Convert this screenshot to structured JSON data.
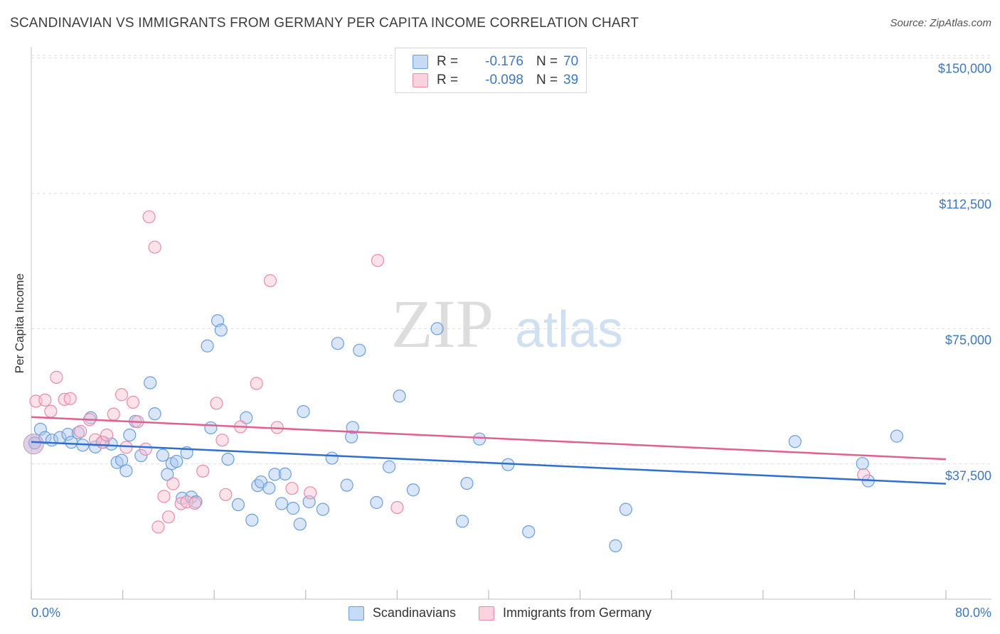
{
  "title": "SCANDINAVIAN VS IMMIGRANTS FROM GERMANY PER CAPITA INCOME CORRELATION CHART",
  "source": "Source: ZipAtlas.com",
  "watermark": {
    "zip": "ZIP",
    "atlas": "atlas"
  },
  "stats": [
    {
      "r_label": "R =",
      "r_value": "-0.176",
      "n_label": "N =",
      "n_value": "70",
      "color": "#a8c8f0",
      "border": "#6a9fe0"
    },
    {
      "r_label": "R =",
      "r_value": "-0.098",
      "n_label": "N =",
      "n_value": "39",
      "color": "#f8c0d0",
      "border": "#ec8aa8"
    }
  ],
  "legend": [
    {
      "label": "Scandinavians",
      "color": "#a8c8f0",
      "border": "#6a9fe0"
    },
    {
      "label": "Immigrants from Germany",
      "color": "#f8c0d0",
      "border": "#ec8aa8"
    }
  ],
  "colors": {
    "blue_line": "#2e6fcf",
    "pink_line": "#e0618f",
    "blue_point": "#6a9fe0",
    "pink_point": "#ec8aa8",
    "axis_text": "#3b78c8"
  },
  "chart_data": {
    "type": "scatter",
    "title": "SCANDINAVIAN VS IMMIGRANTS FROM GERMANY PER CAPITA INCOME CORRELATION CHART",
    "xlabel": "",
    "ylabel": "Per Capita Income",
    "x_tick_labels": [
      "0.0%",
      "80.0%"
    ],
    "y_tick_labels": [
      "$150,000",
      "$112,500",
      "$75,000",
      "$37,500"
    ],
    "y_ticks": [
      150000,
      112500,
      75000,
      37500
    ],
    "xlim": [
      0,
      80
    ],
    "ylim": [
      0,
      153500
    ],
    "grid": "horizontal dashed",
    "legend_position": "bottom",
    "series": [
      {
        "name": "Scandinavians",
        "trend": {
          "x": [
            0,
            80
          ],
          "y": [
            43600,
            32000
          ]
        },
        "points": [
          [
            0.3,
            43300
          ],
          [
            0.8,
            47100
          ],
          [
            1.2,
            44800
          ],
          [
            1.8,
            44100
          ],
          [
            2.5,
            44800
          ],
          [
            3.2,
            45700
          ],
          [
            3.5,
            43500
          ],
          [
            4.1,
            46100
          ],
          [
            4.5,
            42700
          ],
          [
            5.2,
            50300
          ],
          [
            5.6,
            42200
          ],
          [
            6.3,
            43500
          ],
          [
            7.0,
            43000
          ],
          [
            7.5,
            37900
          ],
          [
            7.9,
            38500
          ],
          [
            8.3,
            35600
          ],
          [
            8.6,
            45500
          ],
          [
            9.1,
            49300
          ],
          [
            9.6,
            39800
          ],
          [
            10.4,
            60000
          ],
          [
            10.8,
            51400
          ],
          [
            11.5,
            39900
          ],
          [
            11.9,
            34600
          ],
          [
            12.3,
            37600
          ],
          [
            12.7,
            38200
          ],
          [
            13.2,
            28000
          ],
          [
            13.6,
            40600
          ],
          [
            14.0,
            28300
          ],
          [
            14.4,
            27000
          ],
          [
            15.4,
            70200
          ],
          [
            15.7,
            47500
          ],
          [
            16.3,
            77200
          ],
          [
            16.6,
            74600
          ],
          [
            17.2,
            38800
          ],
          [
            18.1,
            26200
          ],
          [
            18.8,
            50300
          ],
          [
            19.3,
            21900
          ],
          [
            19.8,
            31500
          ],
          [
            20.1,
            32500
          ],
          [
            20.8,
            30800
          ],
          [
            21.3,
            34600
          ],
          [
            21.9,
            26500
          ],
          [
            22.2,
            34700
          ],
          [
            22.9,
            25200
          ],
          [
            23.5,
            20800
          ],
          [
            23.8,
            52000
          ],
          [
            24.3,
            27000
          ],
          [
            25.5,
            24900
          ],
          [
            26.3,
            39100
          ],
          [
            26.8,
            70900
          ],
          [
            27.6,
            31600
          ],
          [
            28.0,
            45000
          ],
          [
            28.1,
            47600
          ],
          [
            28.7,
            69000
          ],
          [
            30.2,
            26800
          ],
          [
            31.3,
            36700
          ],
          [
            32.2,
            56300
          ],
          [
            33.4,
            30300
          ],
          [
            35.5,
            75000
          ],
          [
            37.7,
            21600
          ],
          [
            38.1,
            32100
          ],
          [
            39.2,
            44400
          ],
          [
            41.7,
            37300
          ],
          [
            43.5,
            18700
          ],
          [
            51.1,
            14800
          ],
          [
            52.0,
            24900
          ],
          [
            66.8,
            43700
          ],
          [
            72.7,
            37600
          ],
          [
            73.2,
            32800
          ],
          [
            75.7,
            45200
          ]
        ]
      },
      {
        "name": "Immigrants from Germany",
        "trend": {
          "x": [
            0,
            80
          ],
          "y": [
            50500,
            38800
          ]
        },
        "points": [
          [
            0.4,
            54900
          ],
          [
            1.2,
            55200
          ],
          [
            1.7,
            52100
          ],
          [
            2.2,
            61500
          ],
          [
            2.9,
            55400
          ],
          [
            3.4,
            55600
          ],
          [
            4.3,
            46500
          ],
          [
            5.1,
            49800
          ],
          [
            5.6,
            44200
          ],
          [
            6.2,
            43500
          ],
          [
            6.6,
            45500
          ],
          [
            7.2,
            51300
          ],
          [
            7.9,
            56700
          ],
          [
            8.3,
            42100
          ],
          [
            8.9,
            54600
          ],
          [
            9.3,
            49200
          ],
          [
            10.0,
            41600
          ],
          [
            10.3,
            106000
          ],
          [
            10.8,
            97600
          ],
          [
            11.1,
            20000
          ],
          [
            11.6,
            28500
          ],
          [
            12.0,
            22800
          ],
          [
            12.4,
            32000
          ],
          [
            13.1,
            26500
          ],
          [
            13.6,
            27000
          ],
          [
            14.3,
            26600
          ],
          [
            15.0,
            35500
          ],
          [
            16.2,
            54300
          ],
          [
            16.7,
            44100
          ],
          [
            17.0,
            29000
          ],
          [
            18.3,
            47800
          ],
          [
            19.7,
            59800
          ],
          [
            20.9,
            88300
          ],
          [
            21.5,
            47600
          ],
          [
            22.8,
            30700
          ],
          [
            24.4,
            29500
          ],
          [
            30.3,
            93900
          ],
          [
            32.0,
            25400
          ],
          [
            72.8,
            34500
          ]
        ]
      }
    ]
  }
}
